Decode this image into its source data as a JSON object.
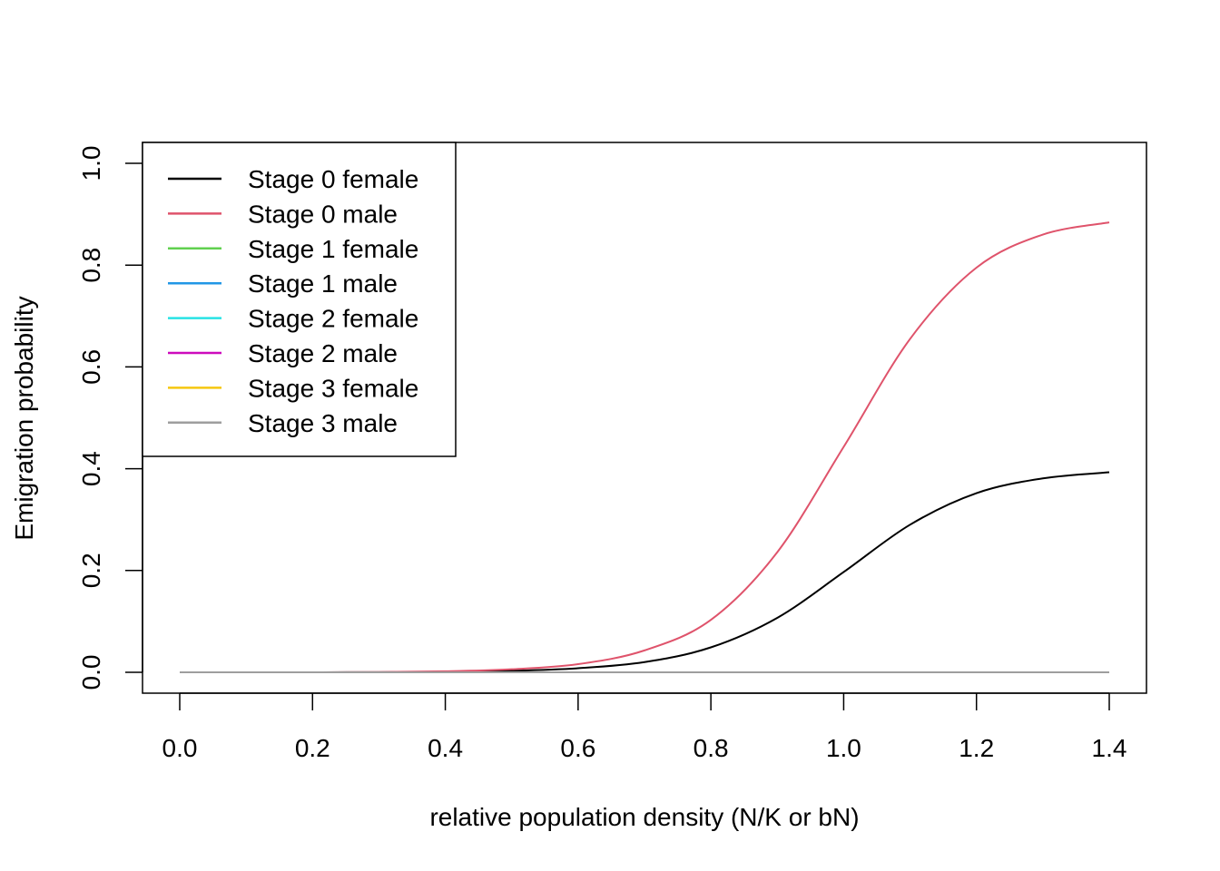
{
  "chart_data": {
    "type": "line",
    "title": "",
    "xlabel": "relative population density (N/K or bN)",
    "ylabel": "Emigration probability",
    "xlim": [
      0.0,
      1.4
    ],
    "ylim": [
      0.0,
      1.0
    ],
    "x_ticks": [
      "0.0",
      "0.2",
      "0.4",
      "0.6",
      "0.8",
      "1.0",
      "1.2",
      "1.4"
    ],
    "y_ticks": [
      "0.0",
      "0.2",
      "0.4",
      "0.6",
      "0.8",
      "1.0"
    ],
    "grid": false,
    "legend_position": "top-left",
    "x": [
      0.0,
      0.1,
      0.2,
      0.3,
      0.4,
      0.5,
      0.6,
      0.7,
      0.8,
      0.9,
      1.0,
      1.1,
      1.2,
      1.3,
      1.4
    ],
    "series": [
      {
        "name": "Stage 0 female",
        "color": "#000000",
        "values": [
          0.0,
          0.0,
          0.0,
          0.0003,
          0.0012,
          0.003,
          0.008,
          0.02,
          0.049,
          0.107,
          0.197,
          0.29,
          0.352,
          0.381,
          0.393
        ]
      },
      {
        "name": "Stage 0 male",
        "color": "#DF536B",
        "values": [
          0.0,
          0.0,
          0.0,
          0.0005,
          0.002,
          0.006,
          0.016,
          0.043,
          0.103,
          0.236,
          0.443,
          0.655,
          0.795,
          0.86,
          0.884
        ]
      },
      {
        "name": "Stage 1 female",
        "color": "#61D04F",
        "values": [
          0,
          0,
          0,
          0,
          0,
          0,
          0,
          0,
          0,
          0,
          0,
          0,
          0,
          0,
          0
        ]
      },
      {
        "name": "Stage 1 male",
        "color": "#2297E6",
        "values": [
          0,
          0,
          0,
          0,
          0,
          0,
          0,
          0,
          0,
          0,
          0,
          0,
          0,
          0,
          0
        ]
      },
      {
        "name": "Stage 2 female",
        "color": "#28E2E5",
        "values": [
          0,
          0,
          0,
          0,
          0,
          0,
          0,
          0,
          0,
          0,
          0,
          0,
          0,
          0,
          0
        ]
      },
      {
        "name": "Stage 2 male",
        "color": "#CD0BBC",
        "values": [
          0,
          0,
          0,
          0,
          0,
          0,
          0,
          0,
          0,
          0,
          0,
          0,
          0,
          0,
          0
        ]
      },
      {
        "name": "Stage 3 female",
        "color": "#F5C710",
        "values": [
          0,
          0,
          0,
          0,
          0,
          0,
          0,
          0,
          0,
          0,
          0,
          0,
          0,
          0,
          0
        ]
      },
      {
        "name": "Stage 3 male",
        "color": "#9E9E9E",
        "values": [
          0,
          0,
          0,
          0,
          0,
          0,
          0,
          0,
          0,
          0,
          0,
          0,
          0,
          0,
          0
        ]
      }
    ]
  }
}
